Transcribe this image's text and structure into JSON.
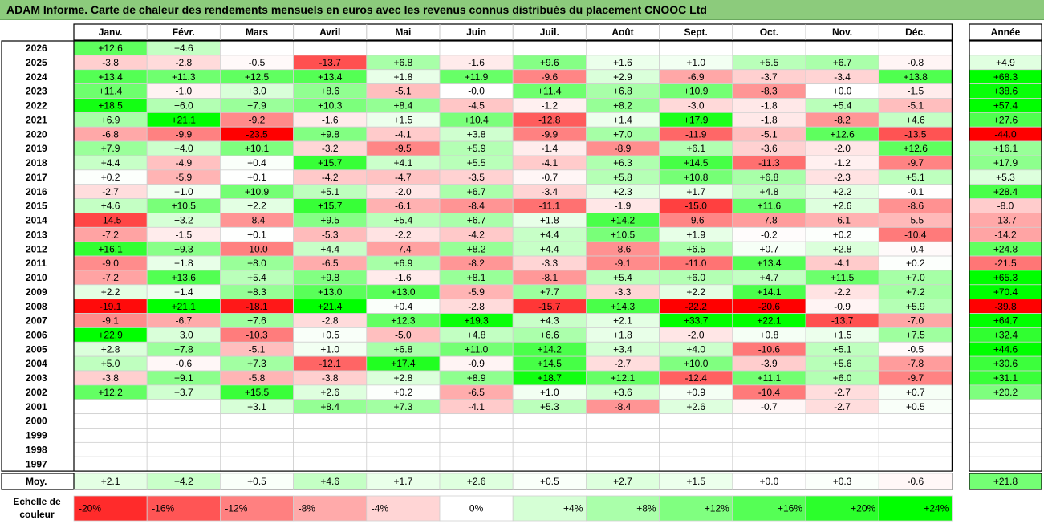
{
  "title": "ADAM Informe. Carte de chaleur des rendements mensuels en euros avec les revenus connus distribués du placement CNOOC Ltd",
  "chart_data": {
    "type": "heatmap",
    "months": [
      "Janv.",
      "Févr.",
      "Mars",
      "Avril",
      "Mai",
      "Juin",
      "Juil.",
      "Août",
      "Sept.",
      "Oct.",
      "Nov.",
      "Déc."
    ],
    "year_header": "Année",
    "rows": [
      {
        "year": "2026",
        "values": [
          12.6,
          4.6,
          null,
          null,
          null,
          null,
          null,
          null,
          null,
          null,
          null,
          null
        ],
        "annual": null
      },
      {
        "year": "2025",
        "values": [
          -3.8,
          -2.8,
          -0.5,
          -13.7,
          6.8,
          -1.6,
          9.6,
          1.6,
          1.0,
          5.5,
          6.7,
          -0.8
        ],
        "annual": 4.9
      },
      {
        "year": "2024",
        "values": [
          13.4,
          11.3,
          12.5,
          13.4,
          1.8,
          11.9,
          -9.6,
          2.9,
          -6.9,
          -3.7,
          -3.4,
          13.8
        ],
        "annual": 68.3
      },
      {
        "year": "2023",
        "values": [
          11.4,
          -1.0,
          3.0,
          8.6,
          -5.1,
          -0.0,
          11.4,
          6.8,
          10.9,
          -8.3,
          0.0,
          -1.5
        ],
        "annual": 38.6
      },
      {
        "year": "2022",
        "values": [
          18.5,
          6.0,
          7.9,
          10.3,
          8.4,
          -4.5,
          -1.2,
          8.2,
          -3.0,
          -1.8,
          5.4,
          -5.1
        ],
        "annual": 57.4
      },
      {
        "year": "2021",
        "values": [
          6.9,
          21.1,
          -9.2,
          -1.6,
          1.5,
          10.4,
          -12.8,
          1.4,
          17.9,
          -1.8,
          -8.2,
          4.6
        ],
        "annual": 27.6
      },
      {
        "year": "2020",
        "values": [
          -6.8,
          -9.9,
          -23.5,
          9.8,
          -4.1,
          3.8,
          -9.9,
          7.0,
          -11.9,
          -5.1,
          12.6,
          -13.5
        ],
        "annual": -44.0
      },
      {
        "year": "2019",
        "values": [
          7.9,
          4.0,
          10.1,
          -3.2,
          -9.5,
          5.9,
          -1.4,
          -8.9,
          6.1,
          -3.6,
          -2.0,
          12.6
        ],
        "annual": 16.1
      },
      {
        "year": "2018",
        "values": [
          4.4,
          -4.9,
          0.4,
          15.7,
          4.1,
          5.5,
          -4.1,
          6.3,
          14.5,
          -11.3,
          -1.2,
          -9.7
        ],
        "annual": 17.9
      },
      {
        "year": "2017",
        "values": [
          0.2,
          -5.9,
          0.1,
          -4.2,
          -4.7,
          -3.5,
          -0.7,
          5.8,
          10.8,
          6.8,
          -2.3,
          5.1
        ],
        "annual": 5.3
      },
      {
        "year": "2016",
        "values": [
          -2.7,
          1.0,
          10.9,
          5.1,
          -2.0,
          6.7,
          -3.4,
          2.3,
          1.7,
          4.8,
          2.2,
          -0.1
        ],
        "annual": 28.4
      },
      {
        "year": "2015",
        "values": [
          4.6,
          10.5,
          2.2,
          15.7,
          -6.1,
          -8.4,
          -11.1,
          -1.9,
          -15.0,
          11.6,
          2.6,
          -8.6
        ],
        "annual": -8.0
      },
      {
        "year": "2014",
        "values": [
          -14.5,
          3.2,
          -8.4,
          9.5,
          5.4,
          6.7,
          1.8,
          14.2,
          -9.6,
          -7.8,
          -6.1,
          -5.5
        ],
        "annual": -13.7
      },
      {
        "year": "2013",
        "values": [
          -7.2,
          -1.5,
          0.1,
          -5.3,
          -2.2,
          -4.2,
          4.4,
          10.5,
          1.9,
          -0.2,
          0.2,
          -10.4
        ],
        "annual": -14.2
      },
      {
        "year": "2012",
        "values": [
          16.1,
          9.3,
          -10.0,
          4.4,
          -7.4,
          8.2,
          4.4,
          -8.6,
          6.5,
          0.7,
          2.8,
          -0.4
        ],
        "annual": 24.8
      },
      {
        "year": "2011",
        "values": [
          -9.0,
          1.8,
          8.0,
          -6.5,
          6.9,
          -8.2,
          -3.3,
          -9.1,
          -11.0,
          13.4,
          -4.1,
          0.2
        ],
        "annual": -21.5
      },
      {
        "year": "2010",
        "values": [
          -7.2,
          13.6,
          5.4,
          9.8,
          -1.6,
          8.1,
          -8.1,
          5.4,
          6.0,
          4.7,
          11.5,
          7.0
        ],
        "annual": 65.3
      },
      {
        "year": "2009",
        "values": [
          2.2,
          1.4,
          8.3,
          13.0,
          13.0,
          -5.9,
          7.7,
          -3.3,
          2.2,
          14.1,
          -2.2,
          7.2
        ],
        "annual": 70.4
      },
      {
        "year": "2008",
        "values": [
          -19.1,
          21.1,
          -18.1,
          21.4,
          0.4,
          -2.8,
          -15.7,
          14.3,
          -22.2,
          -20.6,
          -0.9,
          5.9
        ],
        "annual": -39.8
      },
      {
        "year": "2007",
        "values": [
          -9.1,
          -6.7,
          7.6,
          -2.8,
          12.3,
          19.3,
          4.3,
          2.1,
          33.7,
          22.1,
          -13.7,
          -7.0
        ],
        "annual": 64.7
      },
      {
        "year": "2006",
        "values": [
          22.9,
          3.0,
          -10.3,
          0.5,
          -5.0,
          4.8,
          6.6,
          1.8,
          -2.0,
          0.8,
          1.5,
          7.5
        ],
        "annual": 32.4
      },
      {
        "year": "2005",
        "values": [
          2.8,
          7.8,
          -5.1,
          1.0,
          6.8,
          11.0,
          14.2,
          3.4,
          4.0,
          -10.6,
          5.1,
          -0.5
        ],
        "annual": 44.6
      },
      {
        "year": "2004",
        "values": [
          5.0,
          -0.6,
          7.3,
          -12.1,
          17.4,
          -0.9,
          14.5,
          -2.7,
          10.0,
          -3.9,
          5.6,
          -7.8
        ],
        "annual": 30.6
      },
      {
        "year": "2003",
        "values": [
          -3.8,
          9.1,
          -5.8,
          -3.8,
          2.8,
          8.9,
          18.7,
          12.1,
          -12.4,
          11.1,
          6.0,
          -9.7
        ],
        "annual": 31.1
      },
      {
        "year": "2002",
        "values": [
          12.2,
          3.7,
          15.5,
          2.6,
          0.2,
          -6.5,
          1.0,
          3.6,
          0.9,
          -10.4,
          -2.7,
          0.7
        ],
        "annual": 20.2
      },
      {
        "year": "2001",
        "values": [
          null,
          null,
          3.1,
          8.4,
          7.3,
          -4.1,
          5.3,
          -8.4,
          2.6,
          -0.7,
          -2.7,
          0.5
        ],
        "annual": null
      },
      {
        "year": "2000",
        "values": [
          null,
          null,
          null,
          null,
          null,
          null,
          null,
          null,
          null,
          null,
          null,
          null
        ],
        "annual": null
      },
      {
        "year": "1999",
        "values": [
          null,
          null,
          null,
          null,
          null,
          null,
          null,
          null,
          null,
          null,
          null,
          null
        ],
        "annual": null
      },
      {
        "year": "1998",
        "values": [
          null,
          null,
          null,
          null,
          null,
          null,
          null,
          null,
          null,
          null,
          null,
          null
        ],
        "annual": null
      },
      {
        "year": "1997",
        "values": [
          null,
          null,
          null,
          null,
          null,
          null,
          null,
          null,
          null,
          null,
          null,
          null
        ],
        "annual": null
      }
    ],
    "average_label": "Moy.",
    "average_values": [
      2.1,
      4.2,
      0.5,
      4.6,
      1.7,
      2.6,
      0.5,
      2.7,
      1.5,
      0.0,
      0.3,
      -0.6
    ],
    "average_annual": 21.8,
    "color_scale_label": [
      "Echelle de",
      "couleur"
    ],
    "color_scale": [
      {
        "label": "-20%",
        "value": -20
      },
      {
        "label": "-16%",
        "value": -16
      },
      {
        "label": "-12%",
        "value": -12
      },
      {
        "label": "-8%",
        "value": -8
      },
      {
        "label": "-4%",
        "value": -4
      },
      {
        "label": "0%",
        "value": 0
      },
      {
        "label": "+4%",
        "value": 4
      },
      {
        "label": "+8%",
        "value": 8
      },
      {
        "label": "+12%",
        "value": 12
      },
      {
        "label": "+16%",
        "value": 16
      },
      {
        "label": "+20%",
        "value": 20
      },
      {
        "label": "+24%",
        "value": 24
      }
    ],
    "colors": {
      "negative": "#ff0000",
      "neutral": "#ffffff",
      "positive": "#00ff00"
    }
  }
}
